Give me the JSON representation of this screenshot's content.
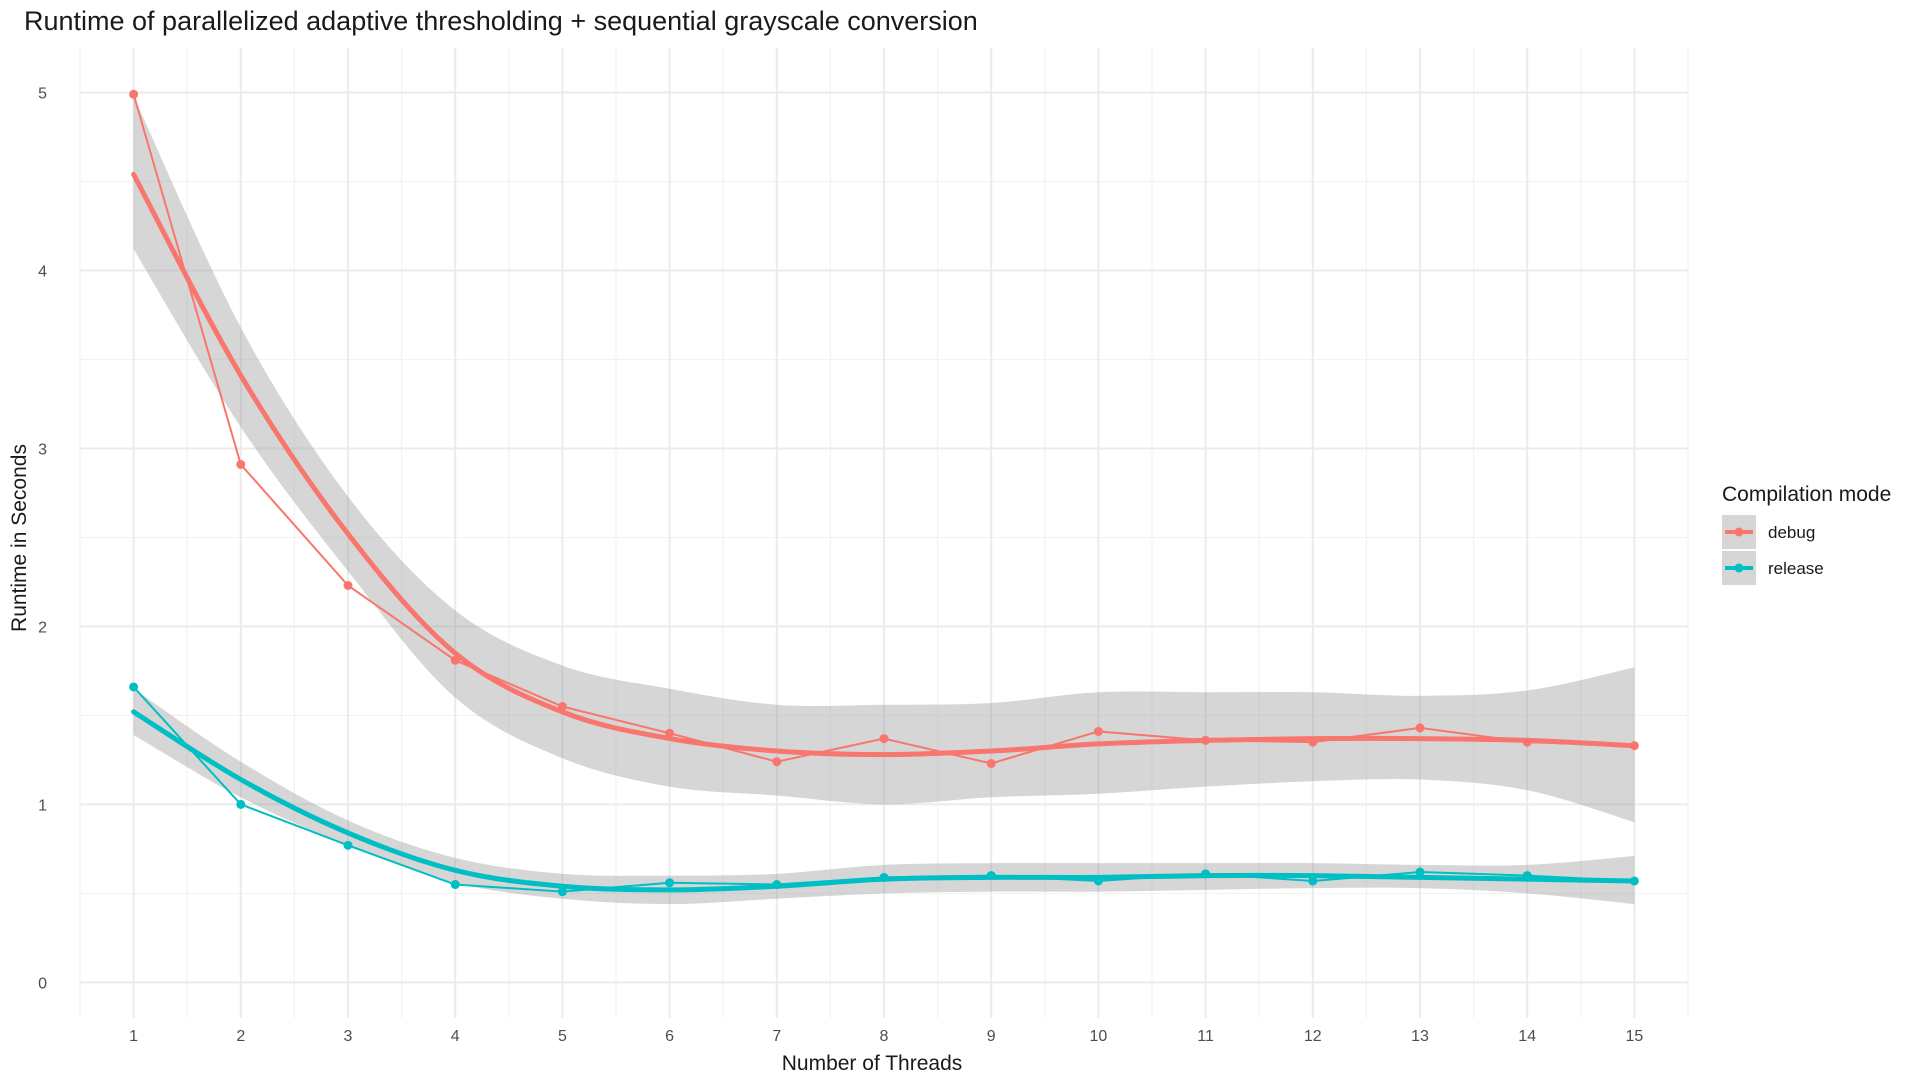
{
  "chart_data": {
    "type": "line",
    "title": "Runtime of parallelized adaptive thresholding + sequential grayscale conversion",
    "xlabel": "Number of Threads",
    "ylabel": "Runtime in Seconds",
    "xlim": [
      0.5,
      15.5
    ],
    "ylim": [
      -0.2,
      5.25
    ],
    "x_ticks": [
      1,
      2,
      3,
      4,
      5,
      6,
      7,
      8,
      9,
      10,
      11,
      12,
      13,
      14,
      15
    ],
    "y_ticks": [
      0,
      1,
      2,
      3,
      4,
      5
    ],
    "grid": true,
    "legend": {
      "title": "Compilation mode",
      "position": "right"
    },
    "x": [
      1,
      2,
      3,
      4,
      5,
      6,
      7,
      8,
      9,
      10,
      11,
      12,
      13,
      14,
      15
    ],
    "series": [
      {
        "name": "debug",
        "color": "#F8766D",
        "values": [
          4.99,
          2.91,
          2.23,
          1.81,
          1.55,
          1.4,
          1.24,
          1.37,
          1.23,
          1.41,
          1.36,
          1.35,
          1.43,
          1.35,
          1.33
        ],
        "smooth": [
          4.54,
          3.41,
          2.52,
          1.85,
          1.52,
          1.37,
          1.3,
          1.28,
          1.3,
          1.34,
          1.36,
          1.37,
          1.37,
          1.36,
          1.33
        ],
        "smooth_ci": {
          "lower": [
            4.12,
            3.12,
            2.31,
            1.6,
            1.26,
            1.1,
            1.05,
            1.0,
            1.04,
            1.06,
            1.1,
            1.13,
            1.14,
            1.08,
            0.9
          ],
          "upper": [
            4.98,
            3.68,
            2.73,
            2.09,
            1.78,
            1.65,
            1.56,
            1.56,
            1.57,
            1.63,
            1.63,
            1.63,
            1.61,
            1.64,
            1.77
          ]
        }
      },
      {
        "name": "release",
        "color": "#00BFC4",
        "values": [
          1.66,
          1.0,
          0.77,
          0.55,
          0.51,
          0.56,
          0.55,
          0.59,
          0.6,
          0.57,
          0.61,
          0.57,
          0.62,
          0.6,
          0.57
        ],
        "smooth": [
          1.52,
          1.14,
          0.84,
          0.63,
          0.54,
          0.52,
          0.54,
          0.58,
          0.59,
          0.59,
          0.6,
          0.6,
          0.59,
          0.58,
          0.57
        ],
        "smooth_ci": {
          "lower": [
            1.39,
            1.04,
            0.77,
            0.56,
            0.47,
            0.44,
            0.47,
            0.5,
            0.51,
            0.51,
            0.52,
            0.53,
            0.53,
            0.5,
            0.44
          ],
          "upper": [
            1.65,
            1.24,
            0.91,
            0.7,
            0.61,
            0.6,
            0.61,
            0.66,
            0.67,
            0.67,
            0.67,
            0.67,
            0.66,
            0.66,
            0.71
          ]
        }
      }
    ]
  }
}
